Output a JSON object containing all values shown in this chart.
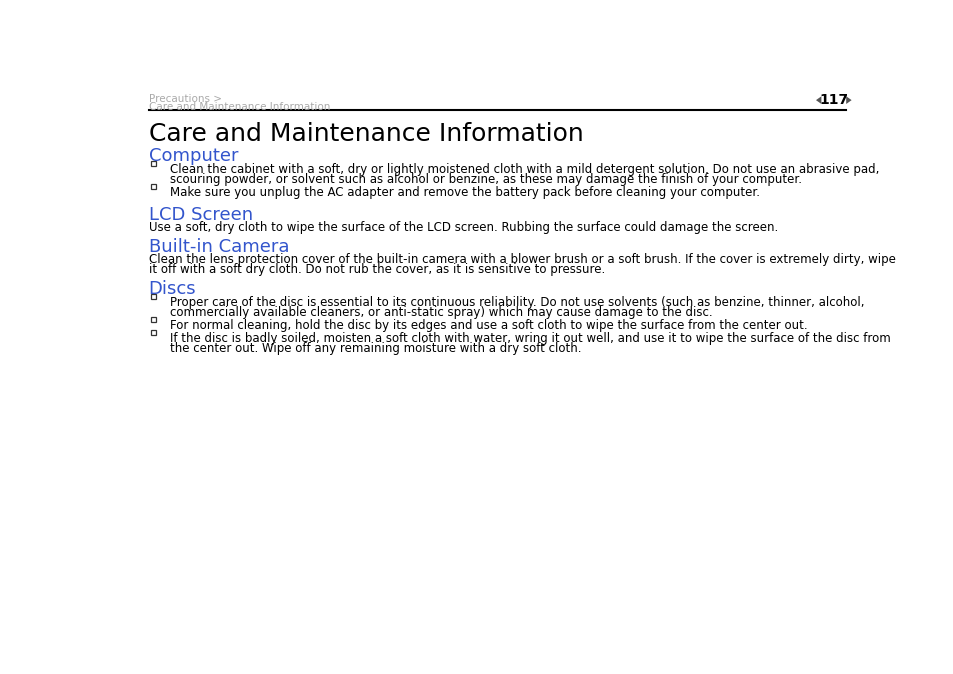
{
  "page_number": "117",
  "breadcrumb_line1": "Precautions >",
  "breadcrumb_line2": "Care and Maintenance Information",
  "main_title": "Care and Maintenance Information",
  "sections": [
    {
      "heading": "Computer",
      "type": "bullets",
      "items": [
        "Clean the cabinet with a soft, dry or lightly moistened cloth with a mild detergent solution. Do not use an abrasive pad,\nscouring powder, or solvent such as alcohol or benzine, as these may damage the finish of your computer.",
        "Make sure you unplug the AC adapter and remove the battery pack before cleaning your computer."
      ]
    },
    {
      "heading": "LCD Screen",
      "type": "paragraph",
      "items": [
        "Use a soft, dry cloth to wipe the surface of the LCD screen. Rubbing the surface could damage the screen."
      ]
    },
    {
      "heading": "Built-in Camera",
      "type": "paragraph",
      "items": [
        "Clean the lens protection cover of the built-in camera with a blower brush or a soft brush. If the cover is extremely dirty, wipe\nit off with a soft dry cloth. Do not rub the cover, as it is sensitive to pressure."
      ]
    },
    {
      "heading": "Discs",
      "type": "bullets",
      "items": [
        "Proper care of the disc is essential to its continuous reliability. Do not use solvents (such as benzine, thinner, alcohol,\ncommercially available cleaners, or anti-static spray) which may cause damage to the disc.",
        "For normal cleaning, hold the disc by its edges and use a soft cloth to wipe the surface from the center out.",
        "If the disc is badly soiled, moisten a soft cloth with water, wring it out well, and use it to wipe the surface of the disc from\nthe center out. Wipe off any remaining moisture with a dry soft cloth."
      ]
    }
  ],
  "colors": {
    "background": "#ffffff",
    "heading_color": "#3355cc",
    "text_color": "#000000",
    "breadcrumb_color": "#aaaaaa",
    "separator_color": "#000000",
    "arrow_color": "#555555"
  },
  "fonts": {
    "breadcrumb_size": 7.5,
    "main_title_size": 18,
    "section_heading_size": 13,
    "body_size": 8.5
  }
}
